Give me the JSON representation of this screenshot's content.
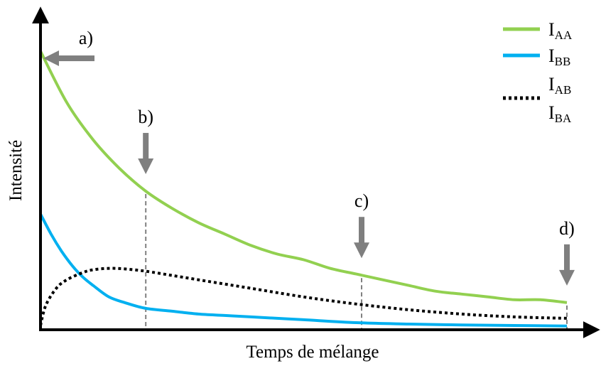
{
  "chart_data": {
    "type": "line",
    "xlabel": "Temps de mélange",
    "ylabel": "Intensité",
    "xlim": [
      0,
      1
    ],
    "ylim": [
      0,
      1
    ],
    "grid": false,
    "legend_position": "top-right",
    "colors": {
      "I_AA": "#92d050",
      "I_BB": "#00b0f0",
      "I_AB_BA": "#000000",
      "axes": "#000000",
      "arrows": "#7f7f7f",
      "markers": "#808080"
    },
    "series": [
      {
        "id": "I_AA",
        "legend_main": "I",
        "legend_sub": "AA",
        "style": "solid",
        "x": [
          0,
          0.05,
          0.1,
          0.15,
          0.2,
          0.25,
          0.3,
          0.35,
          0.4,
          0.45,
          0.5,
          0.55,
          0.6,
          0.65,
          0.7,
          0.75,
          0.8,
          0.85,
          0.9,
          0.95,
          1.0
        ],
        "values": [
          0.97,
          0.79,
          0.66,
          0.56,
          0.48,
          0.42,
          0.37,
          0.33,
          0.29,
          0.26,
          0.24,
          0.21,
          0.19,
          0.17,
          0.15,
          0.13,
          0.12,
          0.11,
          0.1,
          0.1,
          0.09
        ]
      },
      {
        "id": "I_BB",
        "legend_main": "I",
        "legend_sub": "BB",
        "style": "solid",
        "x": [
          0,
          0.02,
          0.04,
          0.06,
          0.08,
          0.1,
          0.13,
          0.16,
          0.2,
          0.25,
          0.3,
          0.35,
          0.4,
          0.5,
          0.6,
          0.7,
          0.8,
          0.9,
          1.0
        ],
        "values": [
          0.4,
          0.33,
          0.27,
          0.22,
          0.18,
          0.15,
          0.11,
          0.09,
          0.07,
          0.06,
          0.05,
          0.045,
          0.04,
          0.03,
          0.02,
          0.015,
          0.012,
          0.01,
          0.008
        ]
      },
      {
        "id": "I_AB_BA",
        "legend_main": "I",
        "legend_sub": "AB",
        "legend_main_2": "I",
        "legend_sub_2": "BA",
        "style": "dotted",
        "x": [
          0,
          0.01,
          0.03,
          0.05,
          0.08,
          0.1,
          0.13,
          0.16,
          0.2,
          0.25,
          0.3,
          0.35,
          0.4,
          0.5,
          0.6,
          0.7,
          0.8,
          0.9,
          1.0
        ],
        "values": [
          0.01,
          0.08,
          0.14,
          0.17,
          0.195,
          0.205,
          0.21,
          0.208,
          0.2,
          0.185,
          0.17,
          0.155,
          0.14,
          0.11,
          0.085,
          0.065,
          0.05,
          0.04,
          0.035
        ]
      }
    ],
    "annotations": [
      {
        "label": "a)",
        "x": 0.0,
        "direction": "left"
      },
      {
        "label": "b)",
        "x": 0.2,
        "direction": "down"
      },
      {
        "label": "c)",
        "x": 0.61,
        "direction": "down"
      },
      {
        "label": "d)",
        "x": 1.0,
        "direction": "down"
      }
    ]
  }
}
